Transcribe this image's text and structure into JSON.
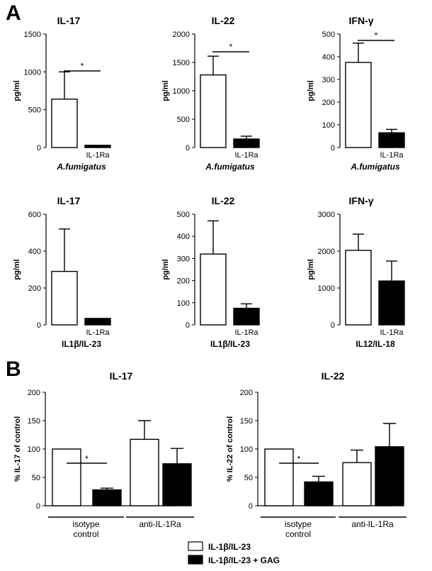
{
  "panels": {
    "a_label": "A",
    "b_label": "B"
  },
  "legend": {
    "items": [
      {
        "label": "IL-1β/IL-23",
        "color": "#ffffff"
      },
      {
        "label": "IL-1β/IL-23 + GAG",
        "color": "#000000"
      }
    ]
  },
  "chart_data": [
    {
      "panel": "A",
      "type": "bar",
      "title": "IL-17",
      "ylabel": "pg/ml",
      "ylim": [
        0,
        1500
      ],
      "yticks": [
        0,
        500,
        1000,
        1500
      ],
      "categories": [
        "",
        "IL-1Ra"
      ],
      "values": [
        640,
        30
      ],
      "errors": [
        360,
        0
      ],
      "colors": [
        "#ffffff",
        "#000000"
      ],
      "xgroup_label": "A.fumigatus",
      "significance": [
        {
          "from": 0,
          "to": 1,
          "label": "*"
        }
      ]
    },
    {
      "panel": "A",
      "type": "bar",
      "title": "IL-22",
      "ylabel": "pg/ml",
      "ylim": [
        0,
        2000
      ],
      "yticks": [
        0,
        500,
        1000,
        1500,
        2000
      ],
      "categories": [
        "",
        "IL-1Ra"
      ],
      "values": [
        1280,
        150
      ],
      "errors": [
        330,
        50
      ],
      "colors": [
        "#ffffff",
        "#000000"
      ],
      "xgroup_label": "A.fumigatus",
      "significance": [
        {
          "from": 0,
          "to": 1,
          "label": "*"
        }
      ]
    },
    {
      "panel": "A",
      "type": "bar",
      "title": "IFN-γ",
      "ylabel": "pg/ml",
      "ylim": [
        0,
        500
      ],
      "yticks": [
        0,
        100,
        200,
        300,
        400,
        500
      ],
      "categories": [
        "",
        "IL-1Ra"
      ],
      "values": [
        375,
        65
      ],
      "errors": [
        85,
        15
      ],
      "colors": [
        "#ffffff",
        "#000000"
      ],
      "xgroup_label": "A.fumigatus",
      "significance": [
        {
          "from": 0,
          "to": 1,
          "label": "*"
        }
      ]
    },
    {
      "panel": "A",
      "type": "bar",
      "title": "IL-17",
      "ylabel": "pg/ml",
      "ylim": [
        0,
        600
      ],
      "yticks": [
        0,
        200,
        400,
        600
      ],
      "categories": [
        "",
        "IL-1Ra"
      ],
      "values": [
        290,
        35
      ],
      "errors": [
        230,
        0
      ],
      "colors": [
        "#ffffff",
        "#000000"
      ],
      "xgroup_label": "IL1β/IL-23",
      "significance": []
    },
    {
      "panel": "A",
      "type": "bar",
      "title": "IL-22",
      "ylabel": "pg/ml",
      "ylim": [
        0,
        500
      ],
      "yticks": [
        0,
        100,
        200,
        300,
        400,
        500
      ],
      "categories": [
        "",
        "IL-1Ra"
      ],
      "values": [
        320,
        75
      ],
      "errors": [
        150,
        20
      ],
      "colors": [
        "#ffffff",
        "#000000"
      ],
      "xgroup_label": "IL1β/IL-23",
      "significance": []
    },
    {
      "panel": "A",
      "type": "bar",
      "title": "IFN-γ",
      "ylabel": "pg/ml",
      "ylim": [
        0,
        3000
      ],
      "yticks": [
        0,
        1000,
        2000,
        3000
      ],
      "categories": [
        "",
        "IL-1Ra"
      ],
      "values": [
        2020,
        1190
      ],
      "errors": [
        440,
        540
      ],
      "colors": [
        "#ffffff",
        "#000000"
      ],
      "xgroup_label": "IL12/IL-18",
      "significance": []
    },
    {
      "panel": "B",
      "type": "bar",
      "title": "IL-17",
      "ylabel": "% IL-17 of control",
      "ylim": [
        0,
        200
      ],
      "yticks": [
        0,
        50,
        100,
        150,
        200
      ],
      "groups": [
        "isotype\ncontrol",
        "anti-IL-1Ra"
      ],
      "series": [
        {
          "name": "IL-1β/IL-23",
          "color": "#ffffff",
          "values": [
            100,
            117
          ],
          "errors": [
            0,
            33
          ]
        },
        {
          "name": "IL-1β/IL-23 + GAG",
          "color": "#000000",
          "values": [
            28,
            74
          ],
          "errors": [
            3,
            27
          ]
        }
      ],
      "significance": [
        {
          "group": 0,
          "label": "*"
        }
      ]
    },
    {
      "panel": "B",
      "type": "bar",
      "title": "IL-22",
      "ylabel": "% IL-22 of control",
      "ylim": [
        0,
        200
      ],
      "yticks": [
        0,
        50,
        100,
        150,
        200
      ],
      "groups": [
        "isotype\ncontrol",
        "anti-IL-1Ra"
      ],
      "series": [
        {
          "name": "IL-1β/IL-23",
          "color": "#ffffff",
          "values": [
            100,
            76
          ],
          "errors": [
            0,
            22
          ]
        },
        {
          "name": "IL-1β/IL-23 + GAG",
          "color": "#000000",
          "values": [
            42,
            104
          ],
          "errors": [
            10,
            41
          ]
        }
      ],
      "significance": [
        {
          "group": 0,
          "label": "*"
        }
      ]
    }
  ]
}
